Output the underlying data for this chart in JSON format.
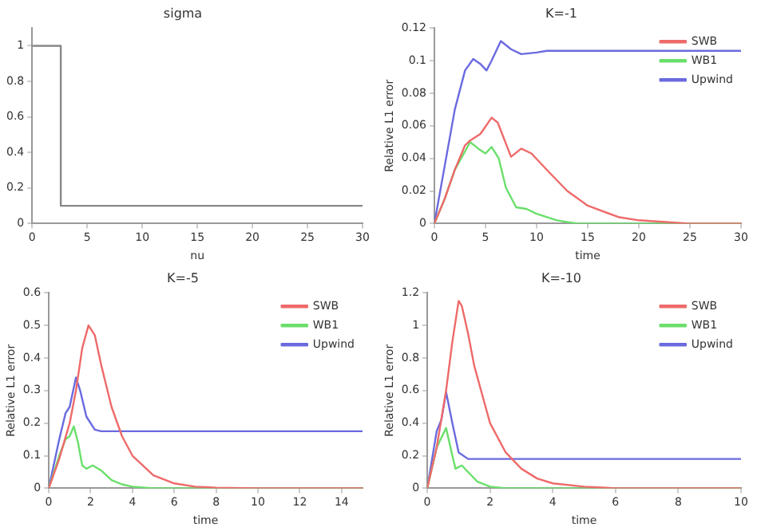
{
  "chart_data": [
    {
      "type": "step",
      "title": "sigma",
      "xlabel": "nu",
      "xlim": [
        0,
        30
      ],
      "xticks": [
        0,
        5,
        10,
        15,
        20,
        25,
        30
      ],
      "ylim": [
        0,
        1.1
      ],
      "yticks": [
        0,
        0.2,
        0.4,
        0.6,
        0.8,
        1
      ],
      "grid": false,
      "legend": false,
      "series": [
        {
          "color": "#888888",
          "x": [
            0,
            2.6,
            30
          ],
          "values": [
            1,
            0.1,
            0.1
          ]
        }
      ]
    },
    {
      "type": "line",
      "title": "K=-1",
      "xlabel": "time",
      "ylabel": "Relative L1 error",
      "xlim": [
        0,
        30
      ],
      "xticks": [
        0,
        5,
        10,
        15,
        20,
        25,
        30
      ],
      "ylim": [
        0,
        0.12
      ],
      "yticks": [
        0,
        0.02,
        0.04,
        0.06,
        0.08,
        0.1,
        0.12
      ],
      "grid": false,
      "legend": "top right",
      "marker": "none",
      "series": [
        {
          "name": "SWB",
          "color": "#ee6a6a",
          "x": [
            0,
            1,
            2,
            3,
            3.5,
            4.5,
            5.6,
            6.2,
            7.5,
            8.5,
            9.5,
            11,
            13,
            15,
            18,
            20,
            25,
            30
          ],
          "values": [
            0,
            0.015,
            0.033,
            0.048,
            0.051,
            0.055,
            0.065,
            0.062,
            0.041,
            0.046,
            0.043,
            0.033,
            0.02,
            0.011,
            0.004,
            0.002,
            0,
            0
          ]
        },
        {
          "name": "WB1",
          "color": "#6adf6a",
          "x": [
            0,
            1,
            2,
            3.5,
            4.3,
            5,
            5.6,
            6.3,
            7,
            8,
            9,
            10,
            12,
            14,
            16,
            30
          ],
          "values": [
            0,
            0.015,
            0.033,
            0.05,
            0.046,
            0.043,
            0.047,
            0.04,
            0.022,
            0.01,
            0.009,
            0.006,
            0.002,
            0,
            0,
            0
          ]
        },
        {
          "name": "Upwind",
          "color": "#6a6ae0",
          "x": [
            0,
            1,
            2,
            3,
            3.8,
            4.5,
            5.1,
            5.6,
            6.5,
            7.5,
            8.5,
            10,
            11,
            30
          ],
          "values": [
            0,
            0.035,
            0.07,
            0.094,
            0.101,
            0.098,
            0.094,
            0.1,
            0.112,
            0.107,
            0.104,
            0.105,
            0.106,
            0.106
          ]
        }
      ]
    },
    {
      "type": "line",
      "title": "K=-5",
      "xlabel": "time",
      "ylabel": "Relative L1 error",
      "xlim": [
        0,
        15
      ],
      "xticks": [
        0,
        2,
        4,
        6,
        8,
        10,
        12,
        14
      ],
      "ylim": [
        0,
        0.6
      ],
      "yticks": [
        0,
        0.1,
        0.2,
        0.3,
        0.4,
        0.5,
        0.6
      ],
      "grid": false,
      "legend": "top right",
      "marker": "none",
      "series": [
        {
          "name": "SWB",
          "color": "#ee6a6a",
          "x": [
            0,
            0.5,
            1,
            1.3,
            1.6,
            1.9,
            2.2,
            2.5,
            3,
            3.5,
            4,
            5,
            6,
            7,
            8,
            10,
            15
          ],
          "values": [
            0,
            0.09,
            0.2,
            0.3,
            0.43,
            0.5,
            0.47,
            0.38,
            0.25,
            0.16,
            0.1,
            0.04,
            0.015,
            0.005,
            0.002,
            0,
            0
          ]
        },
        {
          "name": "WB1",
          "color": "#6adf6a",
          "x": [
            0,
            0.5,
            0.8,
            1,
            1.2,
            1.4,
            1.6,
            1.8,
            2.1,
            2.5,
            3,
            3.5,
            4,
            5,
            15
          ],
          "values": [
            0,
            0.1,
            0.15,
            0.16,
            0.19,
            0.14,
            0.07,
            0.06,
            0.07,
            0.055,
            0.025,
            0.012,
            0.005,
            0,
            0
          ]
        },
        {
          "name": "Upwind",
          "color": "#6a6ae0",
          "x": [
            0,
            0.5,
            0.8,
            1,
            1.3,
            1.5,
            1.8,
            2.2,
            2.5,
            15
          ],
          "values": [
            0,
            0.15,
            0.23,
            0.25,
            0.34,
            0.3,
            0.22,
            0.18,
            0.175,
            0.175
          ]
        }
      ]
    },
    {
      "type": "line",
      "title": "K=-10",
      "xlabel": "time",
      "ylabel": "Relative L1 error",
      "xlim": [
        0,
        10
      ],
      "xticks": [
        0,
        2,
        4,
        6,
        8,
        10
      ],
      "ylim": [
        0,
        1.2
      ],
      "yticks": [
        0,
        0.2,
        0.4,
        0.6,
        0.8,
        1,
        1.2
      ],
      "grid": false,
      "legend": "top right",
      "marker": "none",
      "series": [
        {
          "name": "SWB",
          "color": "#ee6a6a",
          "x": [
            0,
            0.3,
            0.6,
            0.8,
            1,
            1.1,
            1.3,
            1.5,
            2,
            2.5,
            3,
            3.5,
            4,
            5,
            6,
            10
          ],
          "values": [
            0,
            0.25,
            0.6,
            0.9,
            1.15,
            1.12,
            0.95,
            0.75,
            0.4,
            0.22,
            0.12,
            0.06,
            0.03,
            0.01,
            0,
            0
          ]
        },
        {
          "name": "WB1",
          "color": "#6adf6a",
          "x": [
            0,
            0.3,
            0.6,
            0.8,
            0.9,
            1.1,
            1.3,
            1.6,
            2,
            2.5,
            10
          ],
          "values": [
            0,
            0.25,
            0.37,
            0.2,
            0.12,
            0.14,
            0.1,
            0.04,
            0.01,
            0,
            0
          ]
        },
        {
          "name": "Upwind",
          "color": "#6a6ae0",
          "x": [
            0,
            0.3,
            0.45,
            0.6,
            0.8,
            1,
            1.3,
            1.6,
            2,
            10
          ],
          "values": [
            0,
            0.35,
            0.42,
            0.59,
            0.4,
            0.22,
            0.18,
            0.18,
            0.18,
            0.18
          ]
        }
      ]
    }
  ]
}
